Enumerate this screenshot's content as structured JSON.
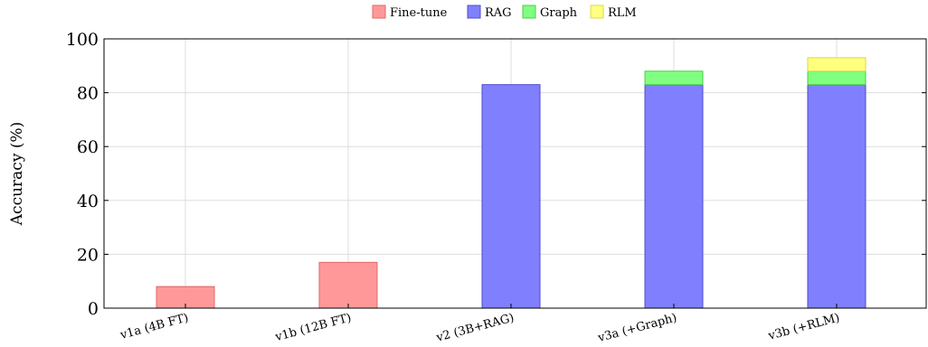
{
  "chart_data": {
    "type": "bar",
    "stacked": true,
    "categories": [
      "v1a (4B FT)",
      "v1b (12B FT)",
      "v2 (3B+RAG)",
      "v3a (+Graph)",
      "v3b (+RLM)"
    ],
    "series": [
      {
        "name": "Fine-tune",
        "color": "#ff9999",
        "stroke": "#e06666",
        "values": [
          8,
          17,
          0,
          0,
          0
        ]
      },
      {
        "name": "RAG",
        "color": "#8080ff",
        "stroke": "#4d4dcc",
        "values": [
          0,
          0,
          83,
          83,
          83
        ]
      },
      {
        "name": "Graph",
        "color": "#80ff80",
        "stroke": "#4dcc4d",
        "values": [
          0,
          0,
          0,
          5,
          5
        ]
      },
      {
        "name": "RLM",
        "color": "#ffff80",
        "stroke": "#d9d94d",
        "values": [
          0,
          0,
          0,
          0,
          5
        ]
      }
    ],
    "title": "",
    "xlabel": "",
    "ylabel": "Accuracy (%)",
    "ylim": [
      0,
      100
    ],
    "yticks": [
      0,
      20,
      40,
      60,
      80,
      100
    ],
    "grid": true,
    "legend": "top-center"
  }
}
